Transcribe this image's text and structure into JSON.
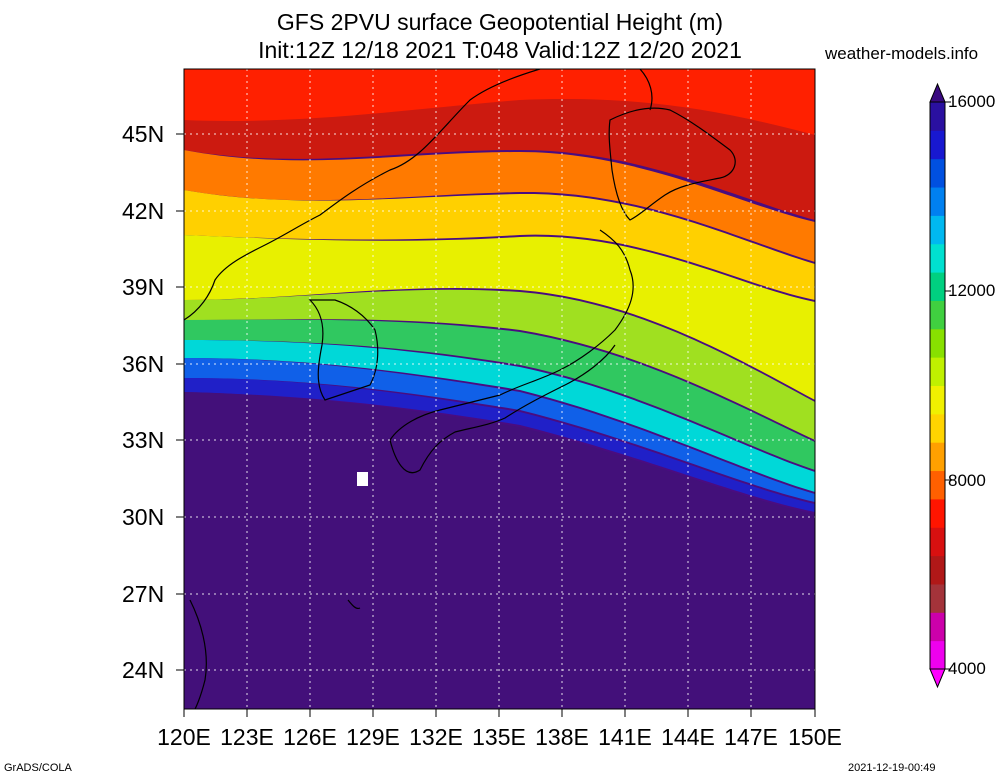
{
  "title": {
    "line1": "GFS 2PVU surface Geopotential Height (m)",
    "line2": "Init:12Z 12/18 2021 T:048 Valid:12Z 12/20 2021"
  },
  "source": "weather-models.info",
  "footer": {
    "left": "GrADS/COLA",
    "right": "2021-12-19-00:49"
  },
  "map": {
    "lat_labels": [
      "45N",
      "42N",
      "39N",
      "36N",
      "33N",
      "30N",
      "27N",
      "24N"
    ],
    "lon_labels": [
      "120E",
      "123E",
      "126E",
      "129E",
      "132E",
      "135E",
      "138E",
      "141E",
      "144E",
      "147E",
      "150E"
    ]
  },
  "colorbar": {
    "labels": [
      "16000",
      "12000",
      "8000",
      "4000"
    ],
    "colors": [
      "#ee00ee",
      "#cc00aa",
      "#a3333a",
      "#b01818",
      "#d81010",
      "#ff1500",
      "#ff6000",
      "#ffa000",
      "#ffd400",
      "#f0f000",
      "#c0f000",
      "#88e000",
      "#40d040",
      "#00d080",
      "#00e0d0",
      "#00b8f0",
      "#0080f0",
      "#0050e0",
      "#1818d0",
      "#2a10a0"
    ],
    "extreme_low": "#ff00ff",
    "extreme_high": "#3a0a80"
  },
  "palette": {
    "background": "#4a0c80",
    "ocean_south": "#43107a"
  }
}
